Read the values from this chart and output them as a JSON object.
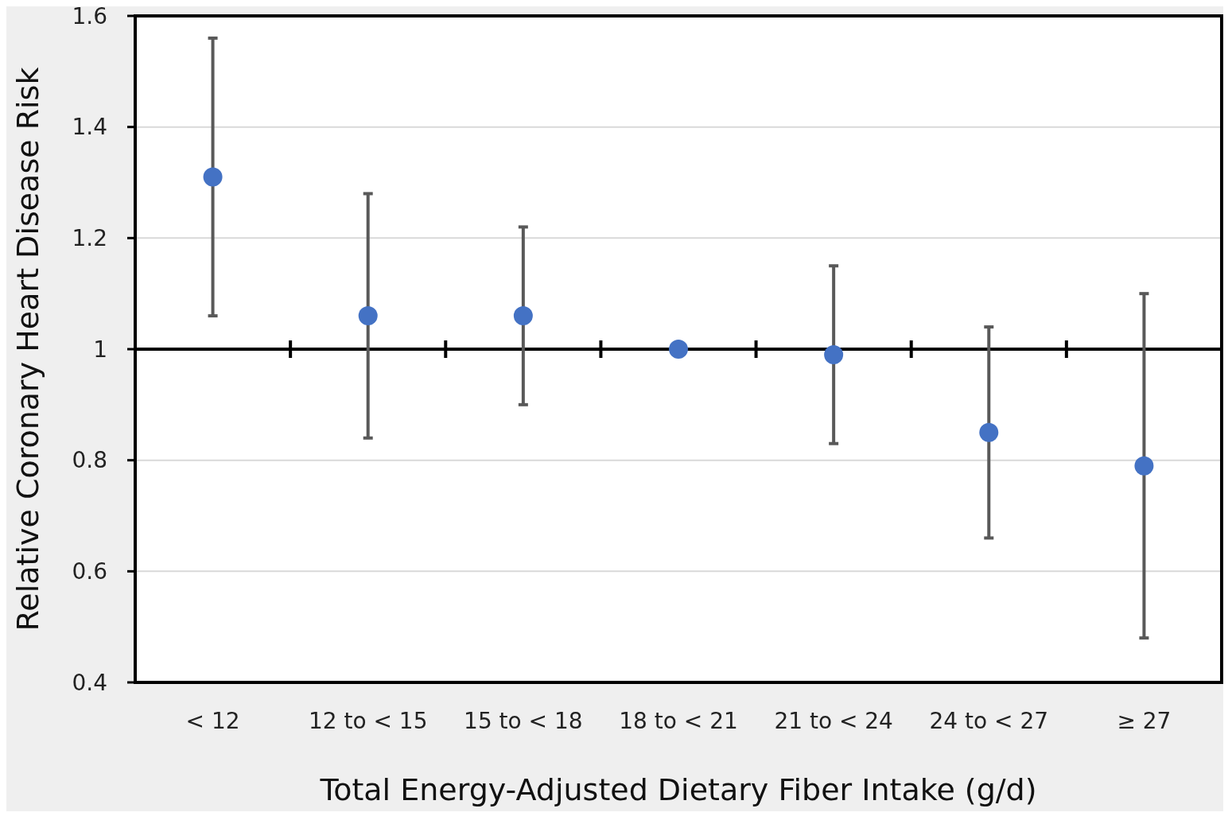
{
  "chart_data": {
    "type": "scatter",
    "xlabel": "Total Energy-Adjusted Dietary Fiber Intake (g/d)",
    "ylabel": "Relative Coronary Heart Disease Risk",
    "categories": [
      "< 12",
      "12 to < 15",
      "15 to < 18",
      "18 to < 21",
      "21 to < 24",
      "24 to < 27",
      "≥ 27"
    ],
    "series": [
      {
        "color": "#4472c4",
        "values": [
          1.31,
          1.06,
          1.06,
          1.0,
          0.99,
          0.85,
          0.79
        ],
        "errors": [
          [
            1.06,
            1.56
          ],
          [
            0.84,
            1.28
          ],
          [
            0.9,
            1.22
          ],
          null,
          [
            0.83,
            1.15
          ],
          [
            0.66,
            1.04
          ],
          [
            0.48,
            1.1
          ]
        ]
      }
    ],
    "ylim": [
      0.4,
      1.6
    ],
    "yticks": [
      0.4,
      0.6,
      0.8,
      1,
      1.2,
      1.4,
      1.6
    ],
    "grid": "y",
    "marker": "circle",
    "ref_lines": [
      {
        "axis": "y",
        "value": 1,
        "color": "#000000"
      }
    ]
  }
}
